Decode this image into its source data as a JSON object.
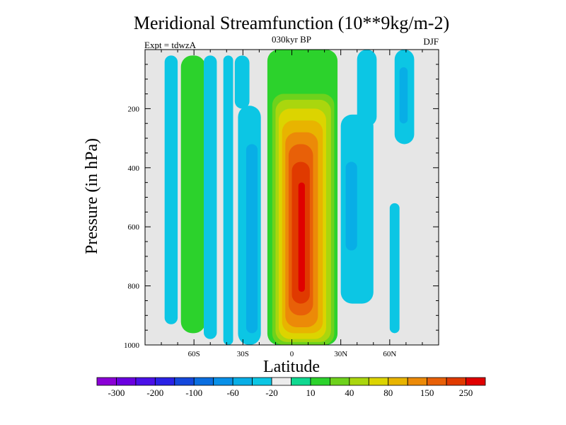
{
  "chart_data": {
    "type": "contour",
    "title": "Meridional Streamfunction (10**9kg/m-2)",
    "subtitle": "030kyr BP",
    "left_label": "Expt = tdwzA",
    "right_label": "DJF",
    "xlabel": "Latitude",
    "ylabel": "Pressure (in hPa)",
    "xlim": [
      -90,
      90
    ],
    "ylim": [
      1000,
      0
    ],
    "x_ticks": [
      {
        "value": -60,
        "label": "60S"
      },
      {
        "value": -30,
        "label": "30S"
      },
      {
        "value": 0,
        "label": "0"
      },
      {
        "value": 30,
        "label": "30N"
      },
      {
        "value": 60,
        "label": "60N"
      }
    ],
    "y_ticks": [
      {
        "value": 200,
        "label": "200"
      },
      {
        "value": 400,
        "label": "400"
      },
      {
        "value": 600,
        "label": "600"
      },
      {
        "value": 800,
        "label": "800"
      },
      {
        "value": 1000,
        "label": "1000"
      }
    ],
    "background_color": "#e6e6e6",
    "colorbar": {
      "colors": [
        "#8a00d6",
        "#6a00e0",
        "#4a10e8",
        "#2a22e6",
        "#1448dc",
        "#0a6ee0",
        "#0890e8",
        "#08aee6",
        "#0cc6e4",
        "#ececec",
        "#10d890",
        "#2cd22c",
        "#6ed21c",
        "#aad60e",
        "#dcd400",
        "#e8b400",
        "#ec8a08",
        "#e86008",
        "#e03a00",
        "#e00000"
      ],
      "labels": [
        "-300",
        "-200",
        "-100",
        "-60",
        "-20",
        "10",
        "40",
        "80",
        "150",
        "250"
      ]
    },
    "regions": [
      {
        "lat": [
          -78,
          -70
        ],
        "p": [
          20,
          930
        ],
        "color": "#0cc6e4"
      },
      {
        "lat": [
          -68,
          -53
        ],
        "p": [
          20,
          960
        ],
        "color": "#2cd22c"
      },
      {
        "lat": [
          -54,
          -46
        ],
        "p": [
          20,
          980
        ],
        "color": "#0cc6e4"
      },
      {
        "lat": [
          -42,
          -36
        ],
        "p": [
          20,
          1000
        ],
        "color": "#0cc6e4"
      },
      {
        "lat": [
          -35,
          -26
        ],
        "p": [
          20,
          200
        ],
        "color": "#0cc6e4"
      },
      {
        "lat": [
          -33,
          -19
        ],
        "p": [
          190,
          1000
        ],
        "color": "#0cc6e4"
      },
      {
        "lat": [
          -28,
          -21
        ],
        "p": [
          320,
          960
        ],
        "color": "#08aee6"
      },
      {
        "lat": [
          -15,
          28
        ],
        "p": [
          0,
          1000
        ],
        "color": "#2cd22c"
      },
      {
        "lat": [
          -12,
          26
        ],
        "p": [
          150,
          1000
        ],
        "color": "#6ed21c"
      },
      {
        "lat": [
          -10,
          24
        ],
        "p": [
          170,
          990
        ],
        "color": "#aad60e"
      },
      {
        "lat": [
          -8,
          21
        ],
        "p": [
          200,
          980
        ],
        "color": "#dcd400"
      },
      {
        "lat": [
          -6,
          19
        ],
        "p": [
          240,
          960
        ],
        "color": "#e8b400"
      },
      {
        "lat": [
          -4,
          16
        ],
        "p": [
          280,
          940
        ],
        "color": "#ec8a08"
      },
      {
        "lat": [
          -2,
          13
        ],
        "p": [
          320,
          900
        ],
        "color": "#e86008"
      },
      {
        "lat": [
          0,
          11
        ],
        "p": [
          380,
          860
        ],
        "color": "#e03a00"
      },
      {
        "lat": [
          4,
          8
        ],
        "p": [
          450,
          820
        ],
        "color": "#e00000"
      },
      {
        "lat": [
          30,
          50
        ],
        "p": [
          220,
          860
        ],
        "color": "#0cc6e4"
      },
      {
        "lat": [
          33,
          40
        ],
        "p": [
          380,
          680
        ],
        "color": "#08aee6"
      },
      {
        "lat": [
          40,
          52
        ],
        "p": [
          0,
          260
        ],
        "color": "#0cc6e4"
      },
      {
        "lat": [
          63,
          75
        ],
        "p": [
          0,
          320
        ],
        "color": "#0cc6e4"
      },
      {
        "lat": [
          66,
          71
        ],
        "p": [
          60,
          250
        ],
        "color": "#08aee6"
      },
      {
        "lat": [
          60,
          66
        ],
        "p": [
          520,
          960
        ],
        "color": "#0cc6e4"
      }
    ]
  }
}
